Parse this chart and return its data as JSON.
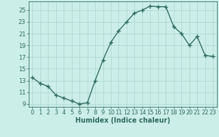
{
  "x": [
    0,
    1,
    2,
    3,
    4,
    5,
    6,
    7,
    8,
    9,
    10,
    11,
    12,
    13,
    14,
    15,
    16,
    17,
    18,
    19,
    20,
    21,
    22,
    23
  ],
  "y": [
    13.5,
    12.5,
    12.0,
    10.5,
    10.0,
    9.5,
    9.0,
    9.2,
    13.0,
    16.5,
    19.5,
    21.5,
    23.0,
    24.5,
    25.0,
    25.7,
    25.6,
    25.6,
    22.2,
    21.0,
    19.0,
    20.5,
    17.3,
    17.1
  ],
  "line_color": "#2d6b5e",
  "bg_color": "#cceee8",
  "grid_color": "#aed8d2",
  "xlabel": "Humidex (Indice chaleur)",
  "xlim": [
    -0.5,
    23.5
  ],
  "ylim": [
    8.5,
    26.5
  ],
  "yticks": [
    9,
    11,
    13,
    15,
    17,
    19,
    21,
    23,
    25
  ],
  "xticks": [
    0,
    1,
    2,
    3,
    4,
    5,
    6,
    7,
    8,
    9,
    10,
    11,
    12,
    13,
    14,
    15,
    16,
    17,
    18,
    19,
    20,
    21,
    22,
    23
  ],
  "marker": "+",
  "markersize": 4,
  "markeredgewidth": 1.0,
  "linewidth": 1.0,
  "xlabel_fontsize": 7,
  "tick_fontsize": 6
}
